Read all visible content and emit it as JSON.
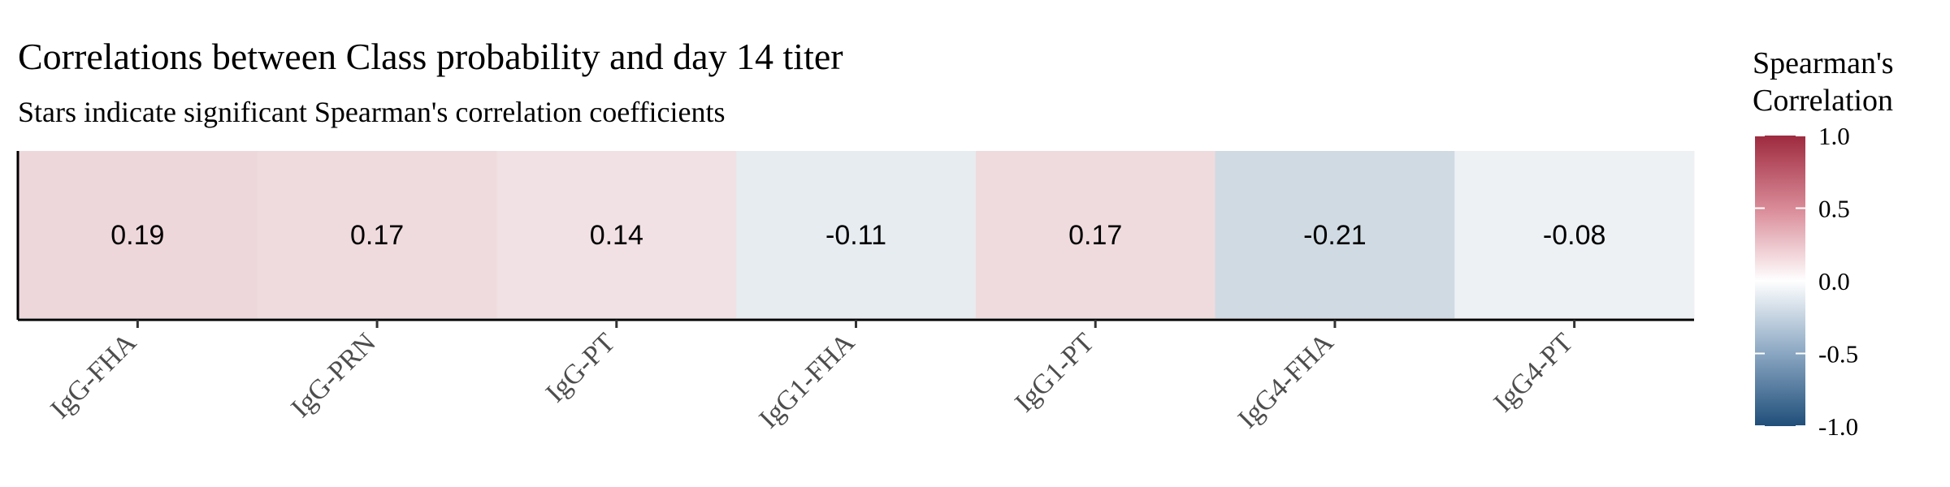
{
  "chart_data": {
    "type": "heatmap",
    "title": "Correlations between Class probability and day 14 titer",
    "subtitle": "Stars indicate significant Spearman's correlation coefficients",
    "categories": [
      "IgG-FHA",
      "IgG-PRN",
      "IgG-PT",
      "IgG1-FHA",
      "IgG1-PT",
      "IgG4-FHA",
      "IgG4-PT"
    ],
    "values": [
      0.19,
      0.17,
      0.14,
      -0.11,
      0.17,
      -0.21,
      -0.08
    ],
    "value_labels": [
      "0.19",
      "0.17",
      "0.14",
      "-0.11",
      "0.17",
      "-0.21",
      "-0.08"
    ],
    "legend": {
      "title_line1": "Spearman's",
      "title_line2": "Correlation",
      "range": [
        -1.0,
        1.0
      ],
      "ticks": [
        1.0,
        0.5,
        0.0,
        -0.5,
        -1.0
      ],
      "tick_labels": [
        "1.0",
        "0.5",
        "0.0",
        "-0.5",
        "-1.0"
      ],
      "placement": "right"
    },
    "colors": {
      "high": "#9e2a3f",
      "mid": "#ffffff",
      "low": "#1f4e79"
    }
  }
}
